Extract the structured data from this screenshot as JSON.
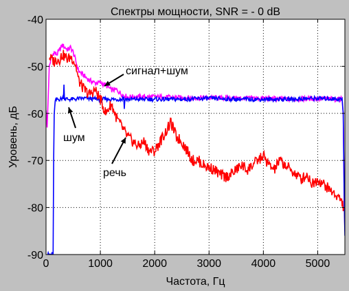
{
  "chart_data": {
    "type": "line",
    "title": "Спектры мощности, SNR = - 0 dB",
    "xlabel": "Частота, Гц",
    "ylabel": "Уровень, дБ",
    "xlim": [
      0,
      5500
    ],
    "ylim": [
      -90,
      -40
    ],
    "xticks": [
      0,
      1000,
      2000,
      3000,
      4000,
      5000
    ],
    "yticks": [
      -90,
      -80,
      -70,
      -60,
      -50,
      -40
    ],
    "grid": true,
    "background": "#ffffff",
    "figure_background": "#c0c0c0",
    "series": [
      {
        "name": "сигнал+шум",
        "color": "#ff00ff",
        "x": [
          0,
          20,
          60,
          100,
          150,
          200,
          250,
          300,
          350,
          400,
          450,
          500,
          550,
          600,
          700,
          800,
          900,
          1000,
          1100,
          1200,
          1300,
          1400,
          1500,
          1700,
          2000,
          2500,
          3000,
          3500,
          4000,
          4500,
          5000,
          5300,
          5400,
          5450,
          5470,
          5490,
          5500
        ],
        "y": [
          -59,
          -63,
          -50,
          -48,
          -47,
          -47.5,
          -46.5,
          -45.5,
          -46,
          -46.5,
          -46,
          -47,
          -49,
          -51,
          -52,
          -53,
          -53.5,
          -53.5,
          -54,
          -55,
          -55,
          -56,
          -56.5,
          -56.5,
          -56.5,
          -56.7,
          -56.7,
          -56.8,
          -56.8,
          -57,
          -56.8,
          -57,
          -57,
          -56.8,
          -60,
          -80,
          -85
        ]
      },
      {
        "name": "шум",
        "color": "#0000ff",
        "x": [
          0,
          100,
          130,
          140,
          150,
          170,
          200,
          250,
          300,
          320,
          330,
          340,
          400,
          500,
          700,
          1000,
          1400,
          1430,
          1440,
          1450,
          1500,
          2000,
          2500,
          3000,
          3500,
          4000,
          4500,
          5000,
          5450,
          5470,
          5490,
          5500
        ],
        "y": [
          -90,
          -90,
          -90,
          -70,
          -60,
          -57.5,
          -57,
          -57,
          -56.8,
          -56.5,
          -54,
          -56.8,
          -57,
          -57,
          -56.8,
          -57,
          -57,
          -56.5,
          -59,
          -57,
          -57,
          -57,
          -57,
          -56.8,
          -57,
          -57,
          -57,
          -56.8,
          -57,
          -60,
          -80,
          -86
        ]
      },
      {
        "name": "речь",
        "color": "#ff0000",
        "x": [
          60,
          100,
          150,
          200,
          250,
          300,
          350,
          400,
          450,
          500,
          550,
          600,
          700,
          800,
          900,
          1000,
          1100,
          1200,
          1300,
          1400,
          1500,
          1600,
          1700,
          1800,
          1900,
          2000,
          2100,
          2200,
          2300,
          2400,
          2500,
          2600,
          2700,
          2800,
          2900,
          3000,
          3100,
          3200,
          3300,
          3400,
          3500,
          3600,
          3700,
          3800,
          3900,
          4000,
          4100,
          4200,
          4300,
          4400,
          4500,
          4600,
          4700,
          4800,
          4900,
          5000,
          5100,
          5200,
          5300,
          5400,
          5450,
          5480
        ],
        "y": [
          -48,
          -48.5,
          -49,
          -48.5,
          -48.5,
          -47.5,
          -48,
          -48.5,
          -48,
          -48.5,
          -50,
          -53,
          -55,
          -56,
          -55,
          -57,
          -60,
          -58,
          -61,
          -63,
          -65,
          -66,
          -67,
          -66,
          -68,
          -68,
          -66,
          -64,
          -62,
          -65,
          -66,
          -68,
          -70,
          -70,
          -71,
          -71.5,
          -72,
          -73,
          -73.5,
          -73,
          -72,
          -71,
          -72,
          -71,
          -70,
          -69,
          -71,
          -72,
          -70,
          -71,
          -72,
          -73,
          -74,
          -73,
          -75,
          -74,
          -75,
          -76,
          -77,
          -78,
          -79,
          -80
        ]
      }
    ],
    "annotations": [
      {
        "text": "сигнал+шум"
      },
      {
        "text": "шум"
      },
      {
        "text": "речь"
      }
    ]
  }
}
